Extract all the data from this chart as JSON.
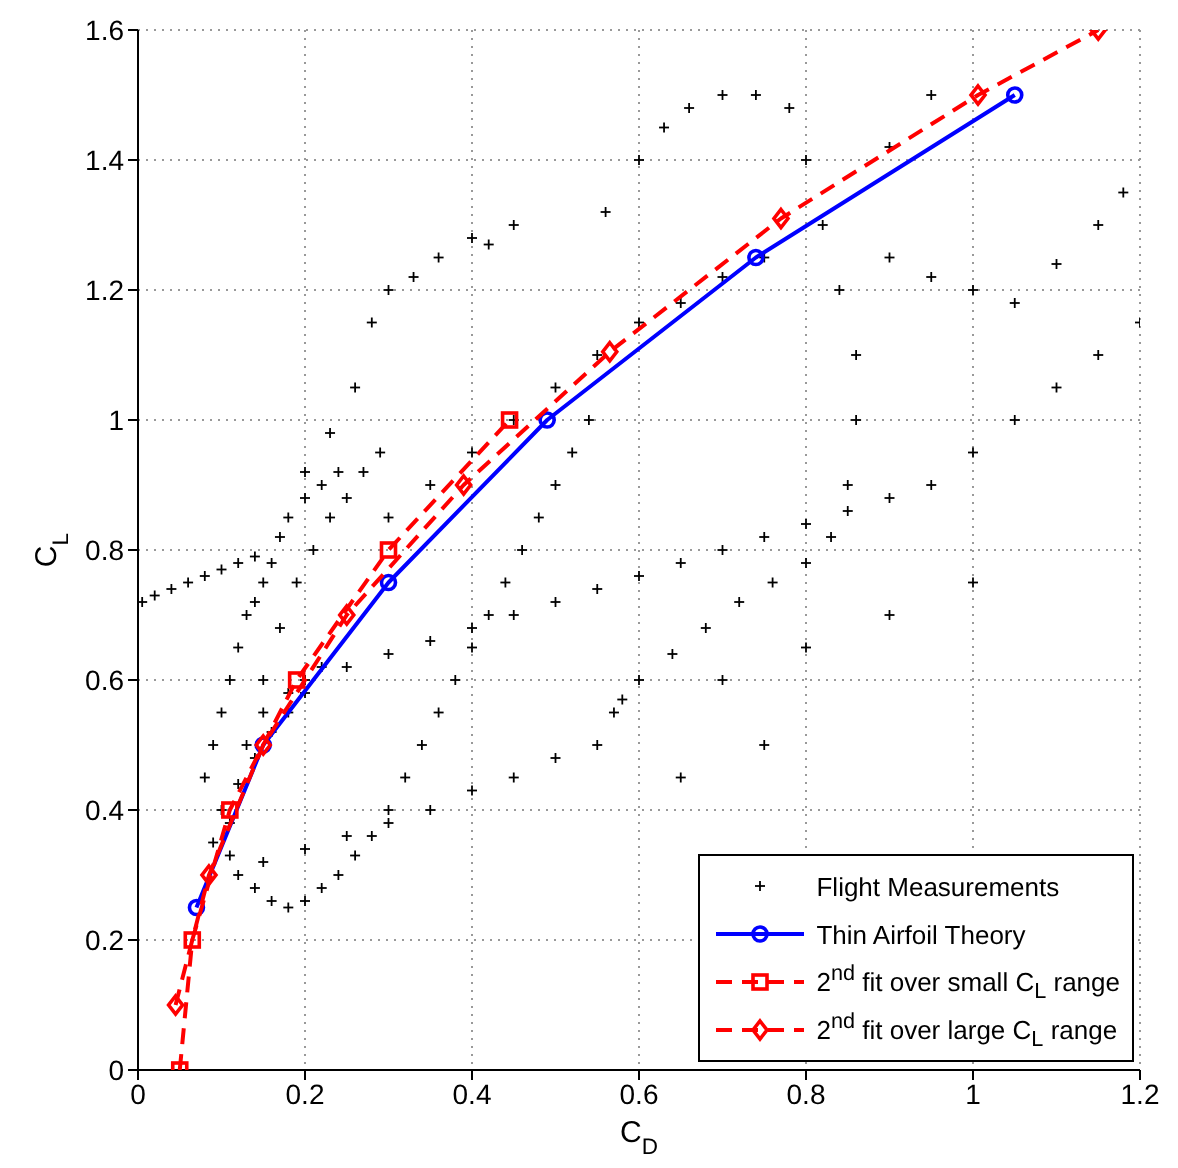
{
  "chart_data": {
    "type": "scatter",
    "xlabel": "C$_{D}$",
    "ylabel": "C$_{L}$",
    "xlim": [
      0,
      1.2
    ],
    "ylim": [
      0,
      1.6
    ],
    "xticks": [
      0,
      0.2,
      0.4,
      0.6,
      0.8,
      1,
      1.2
    ],
    "yticks": [
      0,
      0.2,
      0.4,
      0.6,
      0.8,
      1,
      1.2,
      1.4,
      1.6
    ],
    "grid": true,
    "legend": "bottom right",
    "series": [
      {
        "name": "Flight Measurements",
        "marker": "cross",
        "color": "#000000",
        "x": [
          0.005,
          0.02,
          0.04,
          0.06,
          0.08,
          0.1,
          0.12,
          0.14,
          0.08,
          0.09,
          0.1,
          0.11,
          0.12,
          0.13,
          0.14,
          0.15,
          0.16,
          0.17,
          0.18,
          0.2,
          0.22,
          0.24,
          0.1,
          0.12,
          0.14,
          0.16,
          0.18,
          0.2,
          0.22,
          0.09,
          0.11,
          0.13,
          0.15,
          0.17,
          0.19,
          0.21,
          0.23,
          0.25,
          0.27,
          0.29,
          0.12,
          0.14,
          0.16,
          0.18,
          0.2,
          0.22,
          0.24,
          0.26,
          0.28,
          0.3,
          0.32,
          0.34,
          0.36,
          0.38,
          0.4,
          0.42,
          0.44,
          0.46,
          0.48,
          0.5,
          0.52,
          0.54,
          0.56,
          0.2,
          0.23,
          0.26,
          0.28,
          0.3,
          0.33,
          0.36,
          0.4,
          0.42,
          0.45,
          0.15,
          0.18,
          0.2,
          0.25,
          0.3,
          0.35,
          0.4,
          0.45,
          0.5,
          0.55,
          0.6,
          0.65,
          0.7,
          0.75,
          0.8,
          0.85,
          0.9,
          0.6,
          0.63,
          0.66,
          0.7,
          0.74,
          0.78,
          0.8,
          0.82,
          0.84,
          0.86,
          0.86,
          0.85,
          0.83,
          0.8,
          0.76,
          0.72,
          0.68,
          0.64,
          0.6,
          0.57,
          0.55,
          0.5,
          0.45,
          0.4,
          0.35,
          0.3,
          0.25,
          0.2,
          0.15,
          0.11,
          0.3,
          0.35,
          0.4,
          0.45,
          0.5,
          0.55,
          0.6,
          0.65,
          0.7,
          0.75,
          0.9,
          0.95,
          1.0,
          1.05,
          1.1,
          1.15,
          0.95,
          1.0,
          1.05,
          1.1,
          1.15,
          1.2,
          0.7,
          0.8,
          0.9,
          1.0,
          0.65,
          0.75,
          0.58,
          0.9,
          0.95,
          1.18
        ],
        "values": [
          0.72,
          0.73,
          0.74,
          0.75,
          0.76,
          0.77,
          0.78,
          0.79,
          0.45,
          0.5,
          0.55,
          0.6,
          0.65,
          0.7,
          0.72,
          0.75,
          0.78,
          0.82,
          0.85,
          0.88,
          0.9,
          0.92,
          0.4,
          0.44,
          0.48,
          0.52,
          0.55,
          0.58,
          0.62,
          0.35,
          0.38,
          0.5,
          0.6,
          0.68,
          0.75,
          0.8,
          0.85,
          0.88,
          0.92,
          0.95,
          0.3,
          0.28,
          0.26,
          0.25,
          0.26,
          0.28,
          0.3,
          0.33,
          0.36,
          0.4,
          0.45,
          0.5,
          0.55,
          0.6,
          0.65,
          0.7,
          0.75,
          0.8,
          0.85,
          0.9,
          0.95,
          1.0,
          1.32,
          0.92,
          0.98,
          1.05,
          1.15,
          1.2,
          1.22,
          1.25,
          1.28,
          1.27,
          1.3,
          0.55,
          0.58,
          0.6,
          0.62,
          0.64,
          0.66,
          0.68,
          0.7,
          0.72,
          0.74,
          0.76,
          0.78,
          0.8,
          0.82,
          0.84,
          0.86,
          0.88,
          1.4,
          1.45,
          1.48,
          1.5,
          1.5,
          1.48,
          1.4,
          1.3,
          1.2,
          1.1,
          1.0,
          0.9,
          0.82,
          0.78,
          0.75,
          0.72,
          0.68,
          0.64,
          0.6,
          0.55,
          0.5,
          0.48,
          0.45,
          0.43,
          0.4,
          0.38,
          0.36,
          0.34,
          0.32,
          0.33,
          0.85,
          0.9,
          0.95,
          1.0,
          1.05,
          1.1,
          1.15,
          1.18,
          1.22,
          1.25,
          1.25,
          1.22,
          1.2,
          1.18,
          1.24,
          1.3,
          0.9,
          0.95,
          1.0,
          1.05,
          1.1,
          1.15,
          0.6,
          0.65,
          0.7,
          0.75,
          0.45,
          0.5,
          0.57,
          1.42,
          1.5,
          1.35
        ]
      },
      {
        "name": "Thin Airfoil Theory",
        "type": "line",
        "marker": "circle",
        "line_style": "solid",
        "color": "#0000ff",
        "x": [
          0.07,
          0.15,
          0.3,
          0.49,
          0.74,
          1.05
        ],
        "values": [
          0.25,
          0.5,
          0.75,
          1.0,
          1.25,
          1.5
        ]
      },
      {
        "name": "2$^{nd}$ fit over small C$_{L}$ range",
        "type": "line",
        "marker": "square",
        "line_style": "dashed",
        "color": "#ff0000",
        "x": [
          0.05,
          0.065,
          0.11,
          0.19,
          0.3,
          0.445
        ],
        "values": [
          0,
          0.2,
          0.4,
          0.6,
          0.8,
          1.0
        ]
      },
      {
        "name": "2$^{nd}$ fit over large C$_{L}$ range",
        "type": "line",
        "marker": "diamond",
        "line_style": "dashed",
        "color": "#ff0000",
        "x": [
          0.045,
          0.085,
          0.15,
          0.25,
          0.39,
          0.565,
          0.77,
          1.006,
          1.15
        ],
        "values": [
          0.1,
          0.3,
          0.5,
          0.7,
          0.9,
          1.105,
          1.31,
          1.5,
          1.6
        ]
      }
    ]
  }
}
